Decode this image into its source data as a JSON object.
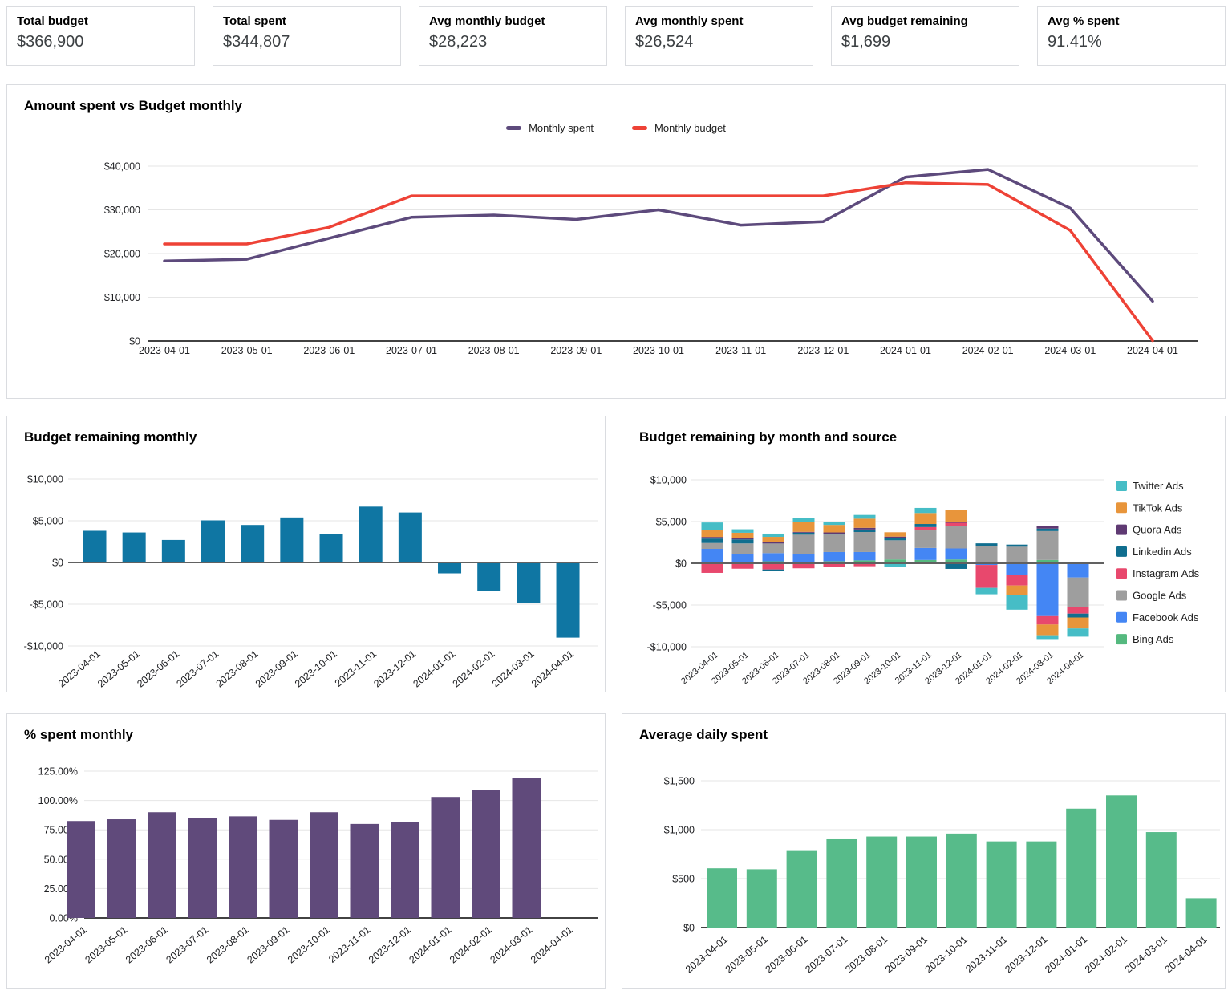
{
  "kpis": [
    {
      "label": "Total budget",
      "value": "$366,900"
    },
    {
      "label": "Total spent",
      "value": "$344,807"
    },
    {
      "label": "Avg monthly budget",
      "value": "$28,223"
    },
    {
      "label": "Avg monthly spent",
      "value": "$26,524"
    },
    {
      "label": "Avg budget remaining",
      "value": "$1,699"
    },
    {
      "label": "Avg % spent",
      "value": "91.41%"
    }
  ],
  "chart_data": [
    {
      "id": "spent-vs-budget",
      "type": "line",
      "title": "Amount spent vs Budget monthly",
      "categories": [
        "2023-04-01",
        "2023-05-01",
        "2023-06-01",
        "2023-07-01",
        "2023-08-01",
        "2023-09-01",
        "2023-10-01",
        "2023-11-01",
        "2023-12-01",
        "2024-01-01",
        "2024-02-01",
        "2024-03-01",
        "2024-04-01"
      ],
      "series": [
        {
          "name": "Monthly spent",
          "color": "#5d4a7c",
          "values": [
            18300,
            18700,
            23500,
            28300,
            28800,
            27800,
            30000,
            26500,
            27300,
            37500,
            39250,
            30400,
            9100
          ]
        },
        {
          "name": "Monthly budget",
          "color": "#ee4236",
          "values": [
            22200,
            22200,
            26000,
            33200,
            33200,
            33200,
            33200,
            33200,
            33200,
            36200,
            35800,
            25300,
            100
          ]
        }
      ],
      "ylim": [
        0,
        40000
      ],
      "ytick": 10000,
      "tick_format": "usd",
      "legend": "top",
      "grid": true
    },
    {
      "id": "budget-remaining-monthly",
      "type": "bar",
      "title": "Budget remaining monthly",
      "categories": [
        "2023-04-01",
        "2023-05-01",
        "2023-06-01",
        "2023-07-01",
        "2023-08-01",
        "2023-09-01",
        "2023-10-01",
        "2023-11-01",
        "2023-12-01",
        "2024-01-01",
        "2024-02-01",
        "2024-03-01",
        "2024-04-01"
      ],
      "values": [
        3800,
        3600,
        2700,
        5050,
        4500,
        5400,
        3400,
        6700,
        6000,
        -1300,
        -3450,
        -4900,
        -9000
      ],
      "color": "#0f76a3",
      "ylim": [
        -10000,
        10000
      ],
      "ytick": 5000,
      "tick_format": "usd",
      "grid": true
    },
    {
      "id": "budget-remaining-by-source",
      "type": "stacked-bar",
      "title": "Budget remaining by month and source",
      "categories": [
        "2023-04-01",
        "2023-05-01",
        "2023-06-01",
        "2023-07-01",
        "2023-08-01",
        "2023-09-01",
        "2023-10-01",
        "2023-11-01",
        "2023-12-01",
        "2024-01-01",
        "2024-02-01",
        "2024-03-01",
        "2024-04-01"
      ],
      "series": [
        {
          "name": "Twitter Ads",
          "color": "#46bdc6",
          "values": [
            930,
            420,
            390,
            500,
            350,
            450,
            -460,
            610,
            0,
            -760,
            -1740,
            -460,
            -980
          ]
        },
        {
          "name": "TikTok Ads",
          "color": "#e8953b",
          "values": [
            800,
            600,
            650,
            1190,
            900,
            1100,
            520,
            1320,
            1410,
            0,
            -1160,
            -1280,
            -1320
          ]
        },
        {
          "name": "Quora Ads",
          "color": "#5f3a73",
          "values": [
            200,
            200,
            150,
            100,
            150,
            200,
            200,
            0,
            100,
            0,
            0,
            300,
            0
          ]
        },
        {
          "name": "Linkedin Ads",
          "color": "#106e8f",
          "values": [
            530,
            480,
            -210,
            240,
            100,
            300,
            240,
            370,
            -670,
            300,
            250,
            300,
            -460
          ]
        },
        {
          "name": "Instagram Ads",
          "color": "#e8486d",
          "values": [
            -1150,
            -650,
            -740,
            -600,
            -450,
            -350,
            0,
            400,
            370,
            -2750,
            -1220,
            -1010,
            -830
          ]
        },
        {
          "name": "Google Ads",
          "color": "#9e9e9e",
          "values": [
            700,
            1250,
            1150,
            2300,
            2100,
            2400,
            2300,
            2100,
            2700,
            2000,
            1990,
            3460,
            -3500
          ]
        },
        {
          "name": "Facebook Ads",
          "color": "#4486f4",
          "values": [
            1730,
            1130,
            980,
            1130,
            1100,
            1000,
            0,
            1440,
            1320,
            -200,
            -1440,
            -6330,
            -1700
          ]
        },
        {
          "name": "Bing Ads",
          "color": "#55b97f",
          "values": [
            0,
            0,
            240,
            0,
            250,
            350,
            460,
            400,
            460,
            90,
            0,
            400,
            100
          ]
        }
      ],
      "ylim": [
        -10000,
        10000
      ],
      "ytick": 5000,
      "tick_format": "usd",
      "legend": "right",
      "grid": true
    },
    {
      "id": "pct-spent-monthly",
      "type": "bar",
      "title": "% spent monthly",
      "categories": [
        "2023-04-01",
        "2023-05-01",
        "2023-06-01",
        "2023-07-01",
        "2023-08-01",
        "2023-09-01",
        "2023-10-01",
        "2023-11-01",
        "2023-12-01",
        "2024-01-01",
        "2024-02-01",
        "2024-03-01",
        "2024-04-01"
      ],
      "values": [
        82.5,
        84,
        90,
        85,
        86.5,
        83.5,
        90,
        80,
        81.5,
        103,
        109,
        119,
        null
      ],
      "color": "#604a7b",
      "ylim": [
        0,
        125
      ],
      "ytick": 25,
      "tick_format": "pct",
      "grid": true
    },
    {
      "id": "average-daily-spent",
      "type": "bar",
      "title": "Average daily spent",
      "categories": [
        "2023-04-01",
        "2023-05-01",
        "2023-06-01",
        "2023-07-01",
        "2023-08-01",
        "2023-09-01",
        "2023-10-01",
        "2023-11-01",
        "2023-12-01",
        "2024-01-01",
        "2024-02-01",
        "2024-03-01",
        "2024-04-01"
      ],
      "values": [
        605,
        595,
        790,
        910,
        930,
        930,
        960,
        880,
        880,
        1215,
        1350,
        975,
        300
      ],
      "color": "#57bb8a",
      "ylim": [
        0,
        1500
      ],
      "ytick": 500,
      "tick_format": "usd",
      "grid": true
    }
  ]
}
